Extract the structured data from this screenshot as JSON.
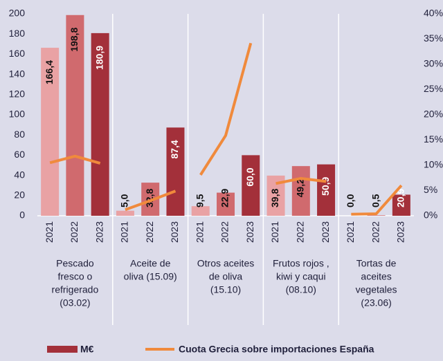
{
  "chart_data": {
    "type": "grouped-bar-line",
    "categories": [
      [
        "Pescado",
        "fresco o",
        "refrigerado",
        "(03.02)"
      ],
      [
        "Aceite de",
        "oliva  (15.09)"
      ],
      [
        "Otros aceites",
        "de oliva",
        "(15.10)"
      ],
      [
        "Frutos rojos ,",
        "kiwi  y caqui",
        "(08.10)"
      ],
      [
        "Tortas de",
        "aceites",
        "vegetales",
        "(23.06)"
      ]
    ],
    "years": [
      "2021",
      "2022",
      "2023"
    ],
    "year_colors": [
      "#e9a2a4",
      "#d06a6e",
      "#a3303a"
    ],
    "series": [
      {
        "name": "M€",
        "type": "bar",
        "color": "#a3303a",
        "values": [
          [
            166.4,
            198.8,
            180.9
          ],
          [
            5.0,
            32.8,
            87.4
          ],
          [
            9.5,
            22.9,
            60.0
          ],
          [
            39.8,
            49.2,
            50.9
          ],
          [
            0.0,
            0.5,
            20.9
          ]
        ],
        "value_labels": [
          [
            "166,4",
            "198,8",
            "180,9"
          ],
          [
            "5,0",
            "32,8",
            "87,4"
          ],
          [
            "9,5",
            "22,9",
            "60,0"
          ],
          [
            "39,8",
            "49,2",
            "50,9"
          ],
          [
            "0,0",
            "0,5",
            "20,9"
          ]
        ]
      },
      {
        "name": "Cuota Grecia sobre importaciones España",
        "type": "line",
        "axis": "y2",
        "color": "#f08a3c",
        "values": [
          [
            10.5,
            11.8,
            10.4
          ],
          [
            1.2,
            3.0,
            4.9
          ],
          [
            8.1,
            15.9,
            34.2
          ],
          [
            6.4,
            7.4,
            6.8
          ],
          [
            0.3,
            0.4,
            6.0
          ]
        ]
      }
    ],
    "ylim": [
      0,
      200
    ],
    "yticks": [
      0,
      20,
      40,
      60,
      80,
      100,
      120,
      140,
      160,
      180,
      200
    ],
    "y2lim": [
      0,
      40
    ],
    "y2ticks": [
      {
        "value": 0,
        "label": "0%"
      },
      {
        "value": 5,
        "label": "5%"
      },
      {
        "value": 10,
        "label": "10%"
      },
      {
        "value": 15,
        "label": "15%"
      },
      {
        "value": 20,
        "label": "20%"
      },
      {
        "value": 25,
        "label": "25%"
      },
      {
        "value": 30,
        "label": "30%"
      },
      {
        "value": 35,
        "label": "35%"
      },
      {
        "value": 40,
        "label": "40%"
      }
    ],
    "legend": "bottom"
  }
}
